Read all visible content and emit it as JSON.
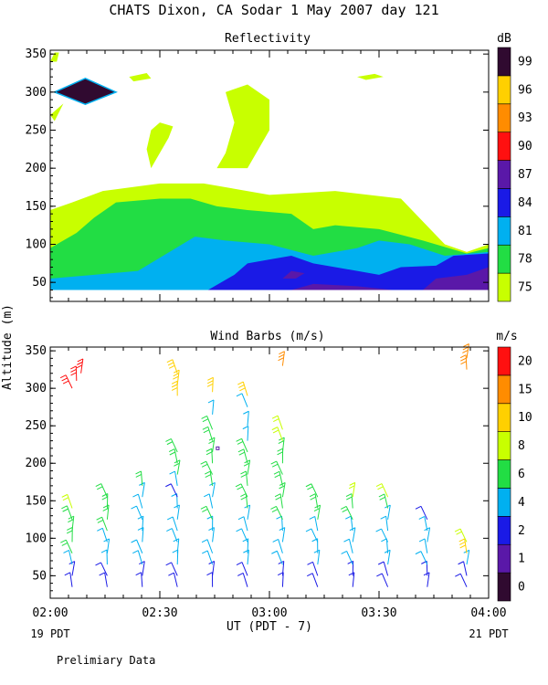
{
  "title": "CHATS Dixon, CA  Sodar   1 May 2007  day 121",
  "footer": "Prelimiary Data",
  "ylabel": "Altitude (m)",
  "xlabel": "UT  (PDT - 7)",
  "x_left_sub": "19 PDT",
  "x_right_sub": "21 PDT",
  "chart_data": [
    {
      "type": "heatmap",
      "title": "Reflectivity",
      "unit": "dB",
      "xlim": [
        "02:00",
        "04:00"
      ],
      "ylim": [
        25,
        355
      ],
      "xticks": [
        "02:00",
        "02:30",
        "03:00",
        "03:30",
        "04:00"
      ],
      "yticks": [
        50,
        100,
        150,
        200,
        250,
        300,
        350
      ],
      "colorbar": {
        "ticks": [
          75,
          78,
          81,
          84,
          87,
          90,
          93,
          96,
          99
        ],
        "colors": [
          "#c8ff00",
          "#22dd44",
          "#00b0f0",
          "#1a1ae6",
          "#5a18a8",
          "#ff1010",
          "#ff8c00",
          "#ffd000",
          "#300a30"
        ]
      },
      "levels": [
        {
          "level": 75,
          "color": "#c8ff00",
          "regions": [
            [
              [
                0,
                40
              ],
              [
                0,
                145
              ],
              [
                0.05,
                155
              ],
              [
                0.12,
                170
              ],
              [
                0.25,
                180
              ],
              [
                0.35,
                180
              ],
              [
                0.5,
                165
              ],
              [
                0.65,
                170
              ],
              [
                0.8,
                160
              ],
              [
                0.9,
                100
              ],
              [
                0.95,
                90
              ],
              [
                1,
                100
              ],
              [
                1,
                40
              ]
            ],
            [
              [
                0.23,
                200
              ],
              [
                0.25,
                220
              ],
              [
                0.27,
                240
              ],
              [
                0.28,
                255
              ],
              [
                0.25,
                260
              ],
              [
                0.23,
                250
              ],
              [
                0.22,
                225
              ]
            ],
            [
              [
                0.38,
                200
              ],
              [
                0.4,
                220
              ],
              [
                0.42,
                260
              ],
              [
                0.4,
                300
              ],
              [
                0.45,
                310
              ],
              [
                0.5,
                290
              ],
              [
                0.5,
                250
              ],
              [
                0.47,
                220
              ],
              [
                0.45,
                200
              ]
            ],
            [
              [
                0.18,
                320
              ],
              [
                0.22,
                325
              ],
              [
                0.23,
                318
              ],
              [
                0.19,
                314
              ]
            ],
            [
              [
                0.7,
                320
              ],
              [
                0.74,
                324
              ],
              [
                0.76,
                320
              ],
              [
                0.72,
                316
              ]
            ],
            [
              [
                0,
                270
              ],
              [
                0.03,
                285
              ],
              [
                0.01,
                262
              ]
            ],
            [
              [
                0,
                340
              ],
              [
                0.01,
                352
              ],
              [
                0.02,
                352
              ],
              [
                0.015,
                340
              ]
            ]
          ]
        },
        {
          "level": 78,
          "color": "#22dd44",
          "regions": [
            [
              [
                0,
                40
              ],
              [
                0,
                95
              ],
              [
                0.06,
                115
              ],
              [
                0.1,
                135
              ],
              [
                0.15,
                155
              ],
              [
                0.25,
                160
              ],
              [
                0.32,
                160
              ],
              [
                0.38,
                150
              ],
              [
                0.45,
                145
              ],
              [
                0.55,
                140
              ],
              [
                0.6,
                120
              ],
              [
                0.65,
                125
              ],
              [
                0.75,
                120
              ],
              [
                0.85,
                105
              ],
              [
                0.95,
                88
              ],
              [
                1,
                95
              ],
              [
                1,
                40
              ]
            ]
          ]
        },
        {
          "level": 81,
          "color": "#00b0f0",
          "regions": [
            [
              [
                0,
                40
              ],
              [
                0,
                55
              ],
              [
                0.1,
                60
              ],
              [
                0.2,
                65
              ],
              [
                0.33,
                110
              ],
              [
                0.4,
                105
              ],
              [
                0.5,
                100
              ],
              [
                0.6,
                85
              ],
              [
                0.7,
                95
              ],
              [
                0.75,
                105
              ],
              [
                0.82,
                100
              ],
              [
                0.9,
                85
              ],
              [
                1,
                90
              ],
              [
                1,
                40
              ]
            ]
          ]
        },
        {
          "level": 84,
          "color": "#1a1ae6",
          "regions": [
            [
              [
                0.36,
                40
              ],
              [
                0.42,
                60
              ],
              [
                0.45,
                75
              ],
              [
                0.5,
                80
              ],
              [
                0.55,
                85
              ],
              [
                0.6,
                75
              ],
              [
                0.65,
                70
              ],
              [
                0.7,
                65
              ],
              [
                0.75,
                60
              ],
              [
                0.8,
                70
              ],
              [
                0.88,
                72
              ],
              [
                0.92,
                85
              ],
              [
                1,
                88
              ],
              [
                1,
                40
              ]
            ]
          ]
        },
        {
          "level": 87,
          "color": "#5a18a8",
          "regions": [
            [
              [
                0.53,
                55
              ],
              [
                0.55,
                65
              ],
              [
                0.58,
                62
              ],
              [
                0.56,
                55
              ]
            ],
            [
              [
                0.55,
                40
              ],
              [
                0.6,
                48
              ],
              [
                0.7,
                45
              ],
              [
                0.78,
                40
              ]
            ],
            [
              [
                0.85,
                40
              ],
              [
                0.88,
                55
              ],
              [
                0.95,
                60
              ],
              [
                1,
                70
              ],
              [
                1,
                40
              ]
            ]
          ]
        },
        {
          "level": 99,
          "color": "#300a30",
          "regions": [
            [
              [
                0.01,
                300
              ],
              [
                0.08,
                318
              ],
              [
                0.15,
                300
              ],
              [
                0.08,
                284
              ]
            ]
          ]
        }
      ]
    },
    {
      "type": "scatter",
      "title": "Wind Barbs (m/s)",
      "unit": "m/s",
      "xlim": [
        "02:00",
        "04:00"
      ],
      "ylim": [
        20,
        355
      ],
      "xticks": [
        "02:00",
        "02:30",
        "03:00",
        "03:30",
        "04:00"
      ],
      "yticks": [
        50,
        100,
        150,
        200,
        250,
        300,
        350
      ],
      "colorbar": {
        "ticks": [
          0,
          1,
          2,
          4,
          6,
          8,
          10,
          15,
          20
        ],
        "colors": [
          "#300a30",
          "#5a18a8",
          "#1a1ae6",
          "#00b0f0",
          "#22dd44",
          "#c8ff00",
          "#ffd000",
          "#ff8c00",
          "#ff1010"
        ]
      },
      "columns": [
        {
          "t": 0.05,
          "heights": [
            35,
            50,
            65,
            80,
            95,
            110,
            125,
            140
          ],
          "speeds": [
            2,
            2,
            4,
            6,
            6,
            6,
            6,
            8
          ],
          "extra": [
            [
              300,
              20
            ],
            [
              310,
              20
            ],
            [
              320,
              20
            ]
          ]
        },
        {
          "t": 0.13,
          "heights": [
            35,
            50,
            65,
            80,
            95,
            110,
            125,
            140,
            155
          ],
          "speeds": [
            2,
            2,
            4,
            4,
            4,
            6,
            6,
            6,
            6
          ]
        },
        {
          "t": 0.21,
          "heights": [
            35,
            50,
            65,
            80,
            95,
            110,
            125,
            140,
            155,
            170
          ],
          "speeds": [
            2,
            2,
            4,
            4,
            4,
            4,
            4,
            4,
            4,
            6
          ]
        },
        {
          "t": 0.29,
          "heights": [
            35,
            50,
            65,
            80,
            95,
            110,
            125,
            140,
            155,
            170,
            185,
            200,
            215,
            290,
            305,
            320
          ],
          "speeds": [
            2,
            2,
            4,
            4,
            4,
            4,
            4,
            4,
            2,
            4,
            6,
            6,
            6,
            10,
            10,
            10
          ]
        },
        {
          "t": 0.37,
          "heights": [
            35,
            50,
            65,
            80,
            95,
            110,
            125,
            140,
            155,
            170,
            185,
            200,
            215,
            230,
            245,
            265,
            295
          ],
          "speeds": [
            2,
            2,
            4,
            4,
            4,
            4,
            6,
            4,
            4,
            6,
            6,
            6,
            6,
            6,
            6,
            4,
            10
          ]
        },
        {
          "t": 0.45,
          "heights": [
            35,
            50,
            65,
            80,
            95,
            110,
            125,
            140,
            155,
            170,
            185,
            200,
            215,
            230,
            250,
            275,
            290
          ],
          "speeds": [
            2,
            2,
            4,
            4,
            4,
            4,
            4,
            6,
            6,
            6,
            6,
            6,
            6,
            4,
            4,
            4,
            10
          ]
        },
        {
          "t": 0.53,
          "heights": [
            35,
            50,
            65,
            80,
            95,
            110,
            125,
            140,
            155,
            170,
            185,
            200,
            215,
            230,
            245,
            330
          ],
          "speeds": [
            2,
            2,
            4,
            4,
            4,
            4,
            6,
            6,
            6,
            6,
            6,
            6,
            6,
            8,
            8,
            15
          ]
        },
        {
          "t": 0.61,
          "heights": [
            35,
            50,
            65,
            80,
            95,
            110,
            125,
            140,
            155
          ],
          "speeds": [
            2,
            2,
            4,
            4,
            4,
            4,
            6,
            6,
            6
          ]
        },
        {
          "t": 0.69,
          "heights": [
            35,
            50,
            65,
            80,
            95,
            110,
            125,
            140,
            155
          ],
          "speeds": [
            2,
            2,
            4,
            4,
            4,
            4,
            6,
            6,
            8
          ]
        },
        {
          "t": 0.77,
          "heights": [
            35,
            50,
            65,
            80,
            95,
            110,
            125,
            140,
            155
          ],
          "speeds": [
            2,
            2,
            4,
            4,
            4,
            4,
            4,
            6,
            8
          ]
        },
        {
          "t": 0.86,
          "heights": [
            35,
            50,
            65,
            80,
            95,
            110,
            125
          ],
          "speeds": [
            2,
            2,
            4,
            4,
            4,
            4,
            2
          ]
        },
        {
          "t": 0.95,
          "heights": [
            35,
            50,
            65,
            80,
            95,
            325,
            340
          ],
          "speeds": [
            2,
            2,
            4,
            10,
            8,
            15,
            15
          ]
        }
      ],
      "marker": {
        "t": 0.382,
        "height": 220
      }
    }
  ]
}
